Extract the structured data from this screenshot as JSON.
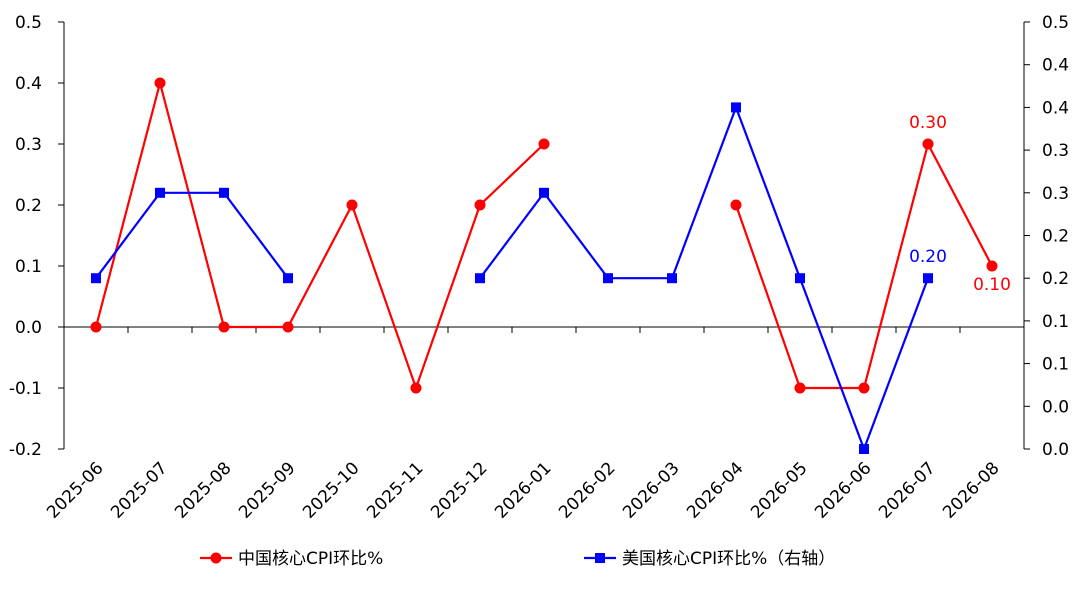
{
  "chart_data": {
    "type": "line",
    "categories": [
      "2025-06",
      "2025-07",
      "2025-08",
      "2025-09",
      "2025-10",
      "2025-11",
      "2025-12",
      "2026-01",
      "2026-02",
      "2026-03",
      "2026-04",
      "2026-05",
      "2026-06",
      "2026-07",
      "2026-08"
    ],
    "series": [
      {
        "name": "中国核心CPI环比%",
        "axis": "left",
        "color": "#ff0000",
        "marker": "circle",
        "values": [
          0.0,
          0.4,
          0.0,
          0.0,
          0.2,
          -0.1,
          0.2,
          0.3,
          null,
          null,
          0.2,
          -0.1,
          -0.1,
          0.3,
          0.1
        ]
      },
      {
        "name": "美国核心CPI环比%（右轴）",
        "axis": "right",
        "color": "#0000ff",
        "marker": "square",
        "values": [
          0.2,
          0.3,
          0.3,
          0.2,
          null,
          null,
          0.2,
          0.3,
          0.2,
          0.2,
          0.4,
          0.2,
          0.0,
          0.2,
          null
        ]
      }
    ],
    "left_axis": {
      "min": -0.2,
      "max": 0.5,
      "ticks": [
        0.5,
        0.4,
        0.3,
        0.2,
        0.1,
        0.0,
        -0.1,
        -0.2
      ],
      "tick_labels": [
        "0.5",
        "0.4",
        "0.3",
        "0.2",
        "0.1",
        "0.0",
        "-0.1",
        "-0.2"
      ]
    },
    "right_axis": {
      "min": 0.0,
      "max": 0.5,
      "ticks": [
        0.5,
        0.45,
        0.4,
        0.35,
        0.3,
        0.25,
        0.2,
        0.15,
        0.1,
        0.05,
        0.0
      ],
      "tick_labels": [
        "0.5",
        "0.4",
        "0.4",
        "0.3",
        "0.3",
        "0.2",
        "0.2",
        "0.1",
        "0.1",
        "0.0",
        "0.0"
      ]
    },
    "data_labels": [
      {
        "series": 0,
        "category": "2026-07",
        "text": "0.30",
        "color": "#ff0000"
      },
      {
        "series": 0,
        "category": "2026-08",
        "text": "0.10",
        "color": "#ff0000"
      },
      {
        "series": 1,
        "category": "2026-07",
        "text": "0.20",
        "color": "#0000ff"
      }
    ],
    "legend_position": "bottom",
    "grid": false
  }
}
